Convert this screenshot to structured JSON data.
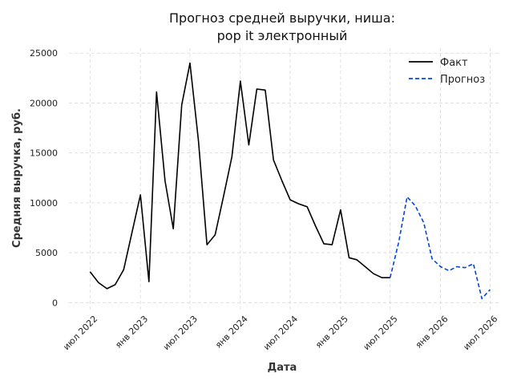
{
  "chart_data": {
    "type": "line",
    "title": "Прогноз средней выручки, ниша:",
    "title_line2": "pop it электронный",
    "xlabel": "Дата",
    "ylabel": "Средняя выручка, руб.",
    "ylim": [
      -700,
      25500
    ],
    "xlim": [
      "2022-04-15",
      "2026-08-01"
    ],
    "grid": true,
    "legend_position": "top-right",
    "y_ticks": [
      0,
      5000,
      10000,
      15000,
      20000,
      25000
    ],
    "y_tick_labels": [
      "0",
      "5000",
      "10000",
      "15000",
      "20000",
      "25000"
    ],
    "x_ticks": [
      "2022-07-01",
      "2023-01-01",
      "2023-07-01",
      "2024-01-01",
      "2024-07-01",
      "2025-01-01",
      "2025-07-01",
      "2026-01-01",
      "2026-07-01"
    ],
    "x_tick_labels": [
      "июл 2022",
      "янв 2023",
      "июл 2023",
      "янв 2024",
      "июл 2024",
      "янв 2025",
      "июл 2025",
      "янв 2026",
      "июл 2026"
    ],
    "series": [
      {
        "name": "Факт",
        "color": "#000000",
        "style": "solid",
        "points": [
          [
            "2022-07-01",
            3100
          ],
          [
            "2022-08-01",
            2000
          ],
          [
            "2022-09-01",
            1400
          ],
          [
            "2022-10-01",
            1800
          ],
          [
            "2022-11-01",
            3300
          ],
          [
            "2022-12-01",
            7000
          ],
          [
            "2023-01-01",
            10800
          ],
          [
            "2023-02-01",
            2100
          ],
          [
            "2023-03-01",
            21100
          ],
          [
            "2023-04-01",
            12200
          ],
          [
            "2023-05-01",
            7400
          ],
          [
            "2023-06-01",
            19800
          ],
          [
            "2023-07-01",
            24000
          ],
          [
            "2023-08-01",
            16200
          ],
          [
            "2023-09-01",
            5800
          ],
          [
            "2023-10-01",
            6800
          ],
          [
            "2023-11-01",
            10700
          ],
          [
            "2023-12-01",
            14600
          ],
          [
            "2024-01-01",
            22200
          ],
          [
            "2024-02-01",
            15800
          ],
          [
            "2024-03-01",
            21400
          ],
          [
            "2024-04-01",
            21300
          ],
          [
            "2024-05-01",
            14300
          ],
          [
            "2024-06-01",
            12200
          ],
          [
            "2024-07-01",
            10300
          ],
          [
            "2024-08-01",
            9900
          ],
          [
            "2024-09-01",
            9600
          ],
          [
            "2024-10-01",
            7700
          ],
          [
            "2024-11-01",
            5900
          ],
          [
            "2024-12-01",
            5800
          ],
          [
            "2025-01-01",
            9300
          ],
          [
            "2025-02-01",
            4500
          ],
          [
            "2025-03-01",
            4300
          ],
          [
            "2025-04-01",
            3600
          ],
          [
            "2025-05-01",
            2900
          ],
          [
            "2025-06-01",
            2500
          ],
          [
            "2025-07-01",
            2500
          ]
        ]
      },
      {
        "name": "Прогноз",
        "color": "#0047d6",
        "style": "dashed",
        "points": [
          [
            "2025-07-01",
            2500
          ],
          [
            "2025-08-01",
            6000
          ],
          [
            "2025-09-01",
            10600
          ],
          [
            "2025-10-01",
            9700
          ],
          [
            "2025-11-01",
            8000
          ],
          [
            "2025-12-01",
            4400
          ],
          [
            "2026-01-01",
            3600
          ],
          [
            "2026-02-01",
            3200
          ],
          [
            "2026-03-01",
            3600
          ],
          [
            "2026-04-01",
            3500
          ],
          [
            "2026-05-01",
            3900
          ],
          [
            "2026-06-01",
            400
          ],
          [
            "2026-07-01",
            1300
          ]
        ]
      }
    ]
  }
}
